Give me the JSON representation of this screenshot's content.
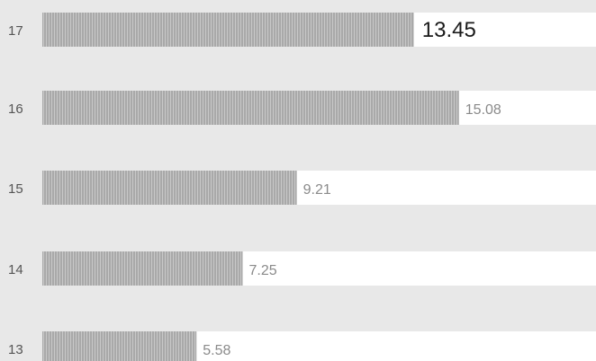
{
  "chart_data": {
    "type": "bar",
    "orientation": "horizontal",
    "categories": [
      "17",
      "16",
      "15",
      "14",
      "13"
    ],
    "values": [
      13.45,
      15.08,
      9.21,
      7.25,
      5.58
    ],
    "value_labels": [
      "13.45",
      "15.08",
      "9.21",
      "7.25",
      "5.58"
    ],
    "highlighted_category": "17",
    "xlim": [
      0,
      20.04
    ],
    "title": "",
    "xlabel": "",
    "ylabel": "",
    "grid": false,
    "legend": "none",
    "colors": {
      "background": "#e8e8e8",
      "row_track": "#ffffff",
      "bar": "#a9a9a9",
      "bar_hatch": "#c8c8c8",
      "value_label": "#8a8a8a",
      "value_label_highlight": "#1a1a1a",
      "category_label": "#555555"
    }
  }
}
